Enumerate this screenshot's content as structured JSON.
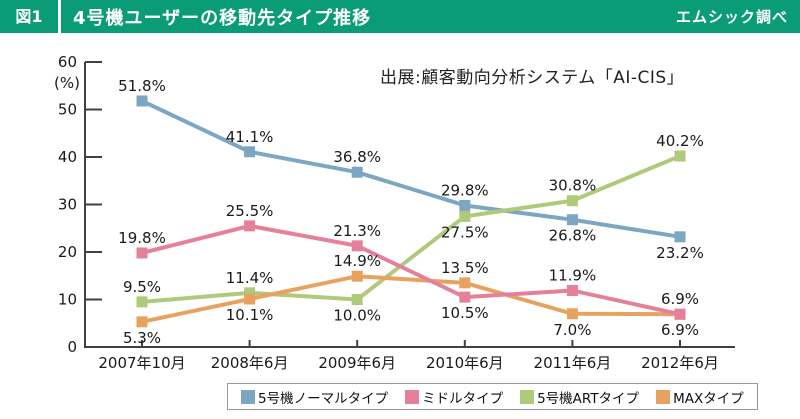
{
  "header": {
    "fig_label": "図1",
    "title": "4号機ユーザーの移動先タイプ推移",
    "source": "エムシック調べ"
  },
  "colors": {
    "header_bg": "#0a9b77",
    "header_text": "#ffffff",
    "axis": "#404040",
    "label_text": "#1a1a1a",
    "legend_border": "#999999"
  },
  "chart_data": {
    "type": "line",
    "title": "4号機ユーザーの移動先タイプ推移",
    "annotation": "出展:顧客動向分析システム「AI-CIS」",
    "unit_label": "(%)",
    "categories": [
      "2007年10月",
      "2008年6月",
      "2009年6月",
      "2010年6月",
      "2011年6月",
      "2012年6月"
    ],
    "ylim": [
      0,
      60
    ],
    "ytick_step": 10,
    "grid": false,
    "legend_position": "bottom",
    "marker": "square",
    "series": [
      {
        "name": "5号機ノーマルタイプ",
        "color": "#7da6c2",
        "values": [
          51.8,
          41.1,
          36.8,
          29.8,
          26.8,
          23.2
        ],
        "label_pos": [
          "above",
          "above",
          "above",
          "above",
          "below",
          "below"
        ]
      },
      {
        "name": "ミドルタイプ",
        "color": "#e5809a",
        "values": [
          19.8,
          25.5,
          21.3,
          10.5,
          11.9,
          6.9
        ],
        "label_pos": [
          "above",
          "above",
          "above",
          "below",
          "above",
          "above"
        ]
      },
      {
        "name": "5号機ARTタイプ",
        "color": "#aeca7a",
        "values": [
          9.5,
          11.4,
          10.0,
          27.5,
          30.8,
          40.2
        ],
        "label_pos": [
          "above",
          "above",
          "below",
          "below",
          "above",
          "above"
        ]
      },
      {
        "name": "MAXタイプ",
        "color": "#e8a260",
        "values": [
          5.3,
          10.1,
          14.9,
          13.5,
          7.0,
          6.9
        ],
        "label_pos": [
          "below",
          "below",
          "above",
          "above",
          "below",
          "below"
        ]
      }
    ]
  }
}
